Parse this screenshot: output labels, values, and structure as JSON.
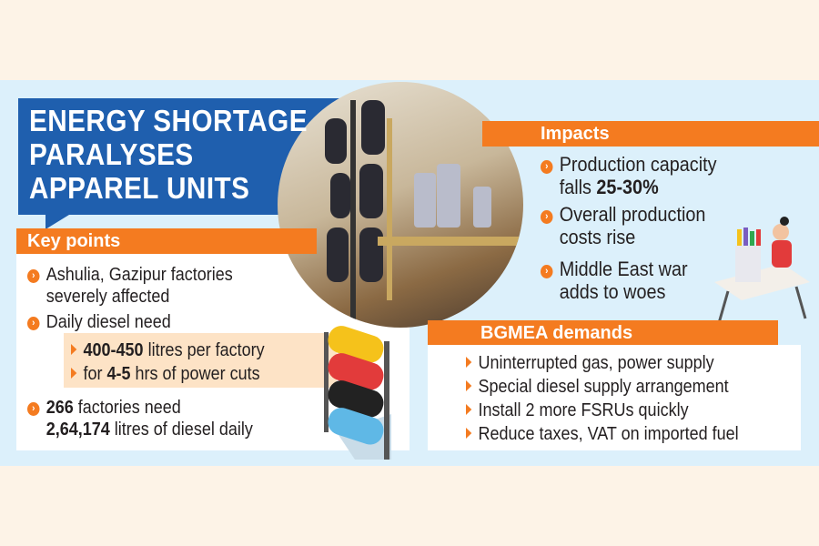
{
  "title": [
    "ENERGY SHORTAGE",
    "PARALYSES",
    "APPAREL UNITS"
  ],
  "key_points": {
    "heading": "Key points",
    "item1": [
      "Ashulia, Gazipur factories",
      "severely affected"
    ],
    "item2": "Daily diesel need",
    "sub1": {
      "bold": "400-450",
      "rest": " litres per factory"
    },
    "sub2": {
      "pre": "for ",
      "bold": "4-5",
      "rest": " hrs of power cuts"
    },
    "item3": {
      "bold1": "266",
      "rest1": " factories need",
      "bold2": "2,64,174",
      "rest2": " litres of diesel daily"
    }
  },
  "impacts": {
    "heading": "Impacts",
    "item1": {
      "line1": "Production capacity",
      "pre": "falls ",
      "bold": "25-30%"
    },
    "item2": [
      "Overall production",
      "costs rise"
    ],
    "item3": [
      "Middle East war",
      "adds to woes"
    ]
  },
  "bgmea": {
    "heading": "BGMEA demands",
    "items": [
      "Uninterrupted gas, power supply",
      "Special diesel supply arrangement",
      "Install 2 more FSRUs quickly",
      "Reduce taxes, VAT on imported fuel"
    ]
  },
  "colors": {
    "blue": "#1f5fae",
    "orange": "#f47b20",
    "band": "#dcf0fb",
    "cream": "#fdf3e7"
  }
}
